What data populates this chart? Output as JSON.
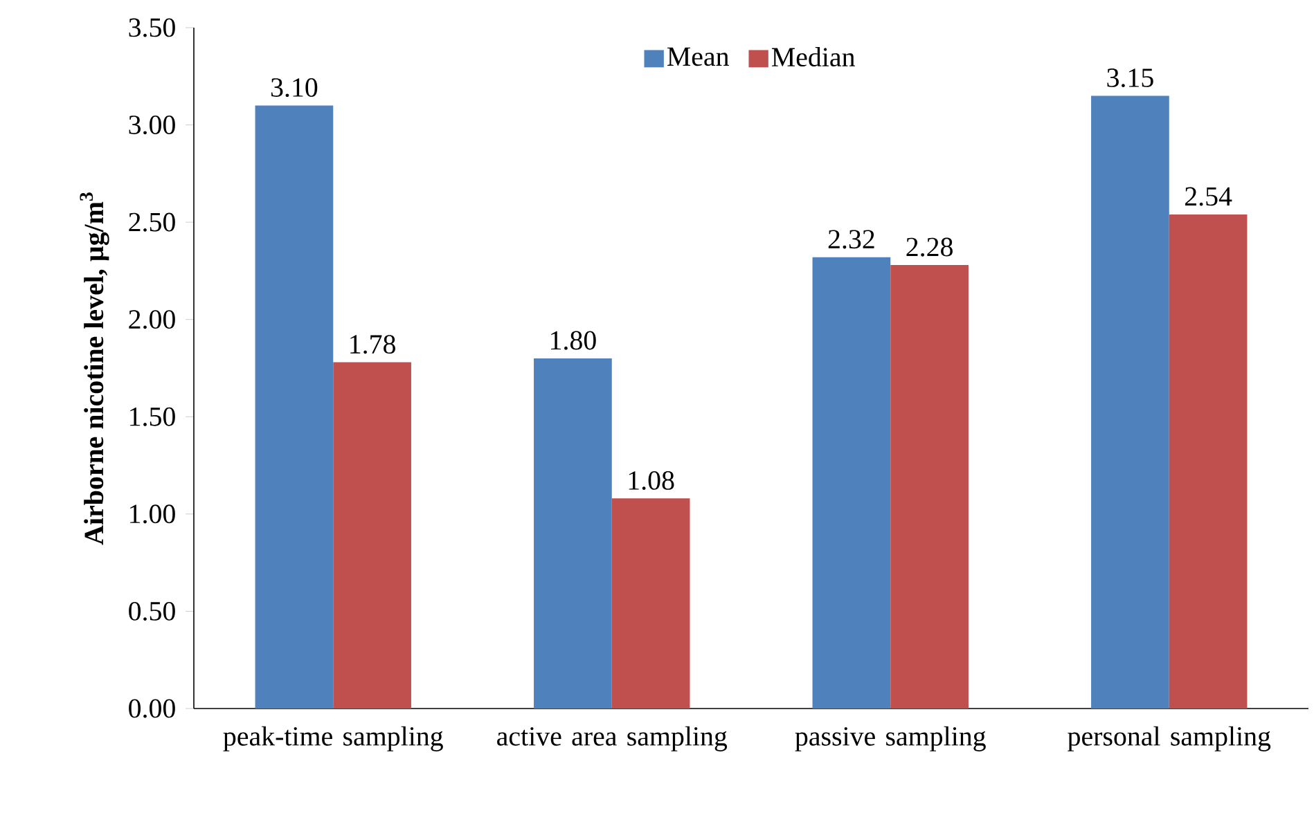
{
  "chart_data": {
    "type": "bar",
    "ylabel": "Airborne nicotine level, µg/m$^{3}$",
    "categories": [
      "peak-time sampling",
      "active area sampling",
      "passive sampling",
      "personal sampling"
    ],
    "series": [
      {
        "name": "Mean",
        "color": "#4f81bd",
        "values": [
          3.1,
          1.8,
          2.32,
          3.15
        ],
        "value_labels": [
          "3.10",
          "1.80",
          "2.32",
          "3.15"
        ]
      },
      {
        "name": "Median",
        "color": "#c0504d",
        "values": [
          1.78,
          1.08,
          2.28,
          2.54
        ],
        "value_labels": [
          "1.78",
          "1.08",
          "2.28",
          "2.54"
        ]
      }
    ],
    "ylim": [
      0,
      3.5
    ],
    "yticks": [
      {
        "value": 0,
        "label": "0.00"
      },
      {
        "value": 0.5,
        "label": "0.50"
      },
      {
        "value": 1,
        "label": "1.00"
      },
      {
        "value": 1.5,
        "label": "1.50"
      },
      {
        "value": 2,
        "label": "2.00"
      },
      {
        "value": 2.5,
        "label": "2.50"
      },
      {
        "value": 3,
        "label": "3.00"
      },
      {
        "value": 3.5,
        "label": "3.50"
      }
    ],
    "legend": "top",
    "grid": false
  }
}
